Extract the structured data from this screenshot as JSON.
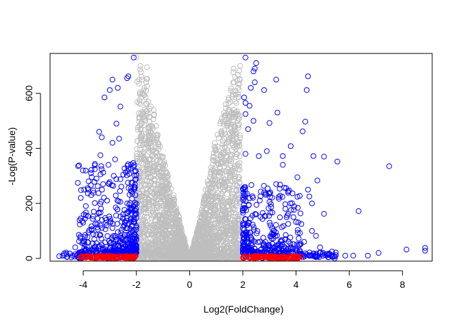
{
  "chart_data": {
    "type": "scatter",
    "title": "",
    "xlabel": "Log2(FoldChange)",
    "ylabel": "-Log(P-value)",
    "xlim": [
      -5.05,
      9.0
    ],
    "ylim": [
      -10,
      745
    ],
    "x_ticks": [
      -4,
      -2,
      0,
      2,
      4,
      6,
      8
    ],
    "y_ticks": [
      0,
      200,
      400,
      600
    ],
    "marker": "open-circle",
    "colors": {
      "not_significant": "#bebebe",
      "significant": "#0000ff",
      "low_significance": "#ff0000"
    },
    "notes": "Volcano plot: grey = |log2FC| < 2; blue = |log2FC| >= 2; red = |log2FC| >= 2 with low -log(p). Thousands of points; only a representative subset of the blue/red outliers is listed, grey cloud is summarized by its envelope.",
    "series": [
      {
        "group": "significant",
        "points": [
          [
            -2.1,
            730
          ],
          [
            -2.3,
            662
          ],
          [
            -2.35,
            655
          ],
          [
            -2.9,
            650
          ],
          [
            -2.7,
            620
          ],
          [
            -3.0,
            612
          ],
          [
            -3.2,
            585
          ],
          [
            -2.6,
            552
          ],
          [
            -2.75,
            490
          ],
          [
            -3.4,
            460
          ],
          [
            -3.3,
            440
          ],
          [
            -2.65,
            435
          ],
          [
            -2.9,
            420
          ],
          [
            -3.35,
            375
          ],
          [
            -2.8,
            360
          ],
          [
            -3.05,
            340
          ],
          [
            -2.4,
            313
          ],
          [
            -2.85,
            300
          ],
          [
            -3.5,
            290
          ],
          [
            -3.25,
            270
          ],
          [
            -2.2,
            255
          ],
          [
            -3.7,
            230
          ],
          [
            -3.9,
            190
          ],
          [
            -3.1,
            210
          ],
          [
            -3.6,
            170
          ],
          [
            -2.5,
            160
          ],
          [
            -4.0,
            130
          ],
          [
            -3.3,
            140
          ],
          [
            -2.9,
            110
          ],
          [
            -4.1,
            80
          ],
          [
            -3.8,
            95
          ],
          [
            -2.3,
            75
          ],
          [
            -4.3,
            40
          ],
          [
            -3.5,
            55
          ],
          [
            -2.6,
            30
          ],
          [
            -4.5,
            18
          ],
          [
            -4.9,
            8
          ],
          [
            -4.6,
            6
          ],
          [
            -4.4,
            10
          ],
          [
            -4.2,
            5
          ],
          [
            -2.1,
            20
          ],
          [
            2.1,
            730
          ],
          [
            2.5,
            710
          ],
          [
            2.45,
            690
          ],
          [
            2.4,
            680
          ],
          [
            4.45,
            662
          ],
          [
            3.25,
            650
          ],
          [
            2.45,
            640
          ],
          [
            2.3,
            620
          ],
          [
            2.8,
            612
          ],
          [
            4.4,
            612
          ],
          [
            2.05,
            585
          ],
          [
            2.1,
            565
          ],
          [
            2.25,
            555
          ],
          [
            3.3,
            530
          ],
          [
            2.1,
            525
          ],
          [
            2.4,
            500
          ],
          [
            3.0,
            492
          ],
          [
            4.35,
            497
          ],
          [
            2.2,
            470
          ],
          [
            4.25,
            462
          ],
          [
            3.8,
            408
          ],
          [
            2.9,
            390
          ],
          [
            2.1,
            380
          ],
          [
            2.6,
            372
          ],
          [
            4.65,
            372
          ],
          [
            3.5,
            372
          ],
          [
            5.05,
            370
          ],
          [
            5.55,
            352
          ],
          [
            7.5,
            335
          ],
          [
            3.5,
            340
          ],
          [
            4.8,
            283
          ],
          [
            3.25,
            270
          ],
          [
            3.4,
            268
          ],
          [
            4.05,
            295
          ],
          [
            4.45,
            250
          ],
          [
            3.7,
            244
          ],
          [
            2.8,
            240
          ],
          [
            4.5,
            225
          ],
          [
            3.0,
            205
          ],
          [
            3.6,
            180
          ],
          [
            4.6,
            200
          ],
          [
            6.35,
            172
          ],
          [
            5.05,
            162
          ],
          [
            2.5,
            160
          ],
          [
            3.9,
            150
          ],
          [
            4.2,
            125
          ],
          [
            3.1,
            110
          ],
          [
            4.6,
            100
          ],
          [
            4.75,
            82
          ],
          [
            3.6,
            70
          ],
          [
            4.3,
            60
          ],
          [
            4.9,
            40
          ],
          [
            5.35,
            25
          ],
          [
            4.0,
            30
          ],
          [
            8.85,
            38
          ],
          [
            8.85,
            28
          ],
          [
            8.15,
            32
          ],
          [
            7.1,
            20
          ],
          [
            6.7,
            10
          ],
          [
            6.15,
            10
          ],
          [
            5.85,
            10
          ],
          [
            5.5,
            12
          ],
          [
            5.1,
            12
          ],
          [
            4.7,
            10
          ]
        ]
      },
      {
        "group": "low_significance",
        "points": [
          [
            -4.1,
            5
          ],
          [
            -3.9,
            3
          ],
          [
            -3.75,
            8
          ],
          [
            -3.6,
            2
          ],
          [
            -3.45,
            6
          ],
          [
            -3.3,
            4
          ],
          [
            -3.15,
            7
          ],
          [
            -3.0,
            3
          ],
          [
            -2.85,
            5
          ],
          [
            -2.7,
            2
          ],
          [
            -2.55,
            6
          ],
          [
            -2.4,
            4
          ],
          [
            -2.25,
            3
          ],
          [
            -2.1,
            5
          ],
          [
            2.1,
            5
          ],
          [
            2.25,
            3
          ],
          [
            2.4,
            6
          ],
          [
            2.55,
            2
          ],
          [
            2.7,
            7
          ],
          [
            2.85,
            4
          ],
          [
            3.0,
            3
          ],
          [
            3.15,
            6
          ],
          [
            3.3,
            2
          ],
          [
            3.45,
            5
          ],
          [
            3.6,
            4
          ],
          [
            3.75,
            3
          ],
          [
            3.9,
            6
          ],
          [
            4.05,
            2
          ],
          [
            4.2,
            5
          ]
        ]
      },
      {
        "group": "not_significant",
        "envelope": [
          [
            -2.0,
            730
          ],
          [
            -1.85,
            700
          ],
          [
            -1.6,
            695
          ],
          [
            -1.9,
            650
          ],
          [
            -1.7,
            620
          ],
          [
            -1.55,
            570
          ],
          [
            -1.35,
            540
          ],
          [
            -1.2,
            450
          ],
          [
            -1.0,
            370
          ],
          [
            -0.8,
            300
          ],
          [
            -0.6,
            230
          ],
          [
            -0.4,
            150
          ],
          [
            -0.2,
            70
          ],
          [
            0,
            0
          ],
          [
            0.2,
            70
          ],
          [
            0.4,
            150
          ],
          [
            0.6,
            250
          ],
          [
            0.8,
            330
          ],
          [
            0.95,
            420
          ],
          [
            1.15,
            490
          ],
          [
            1.35,
            560
          ],
          [
            1.55,
            610
          ],
          [
            1.7,
            660
          ],
          [
            1.65,
            690
          ],
          [
            1.9,
            700
          ]
        ]
      }
    ]
  }
}
